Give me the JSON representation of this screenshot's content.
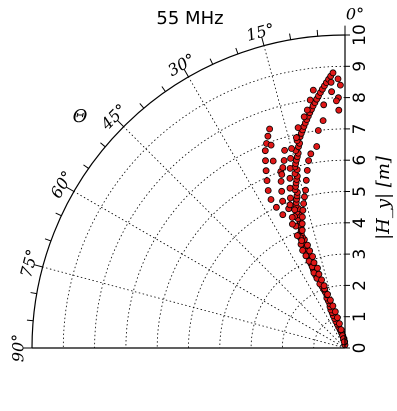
{
  "chart_data": {
    "type": "scatter",
    "projection": "polar",
    "title": "55 MHz",
    "radial_axis": {
      "label": "|H_y| [m]",
      "range": [
        0,
        10
      ],
      "ticks": [
        "0",
        "1",
        "2",
        "3",
        "4",
        "5",
        "6",
        "7",
        "8",
        "9",
        "10"
      ]
    },
    "angular_axis": {
      "label": "Θ",
      "range_deg": [
        0,
        90
      ],
      "ticks": [
        "0°",
        "15°",
        "30°",
        "45°",
        "60°",
        "75°",
        "90°"
      ],
      "tick_values_deg": [
        0,
        15,
        30,
        45,
        60,
        75,
        90
      ]
    },
    "grid": true,
    "legend": "none",
    "marker": {
      "face_color": "#e01818",
      "edge_color": "#000000"
    },
    "series": [
      {
        "points": [
          [
            0.1,
            0
          ],
          [
            0.2,
            3
          ],
          [
            0.3,
            6
          ],
          [
            0.4,
            10
          ],
          [
            0.5,
            13
          ],
          [
            0.6,
            15
          ],
          [
            0.7,
            17
          ],
          [
            0.8,
            18
          ],
          [
            0.9,
            19
          ],
          [
            1.0,
            19.5
          ],
          [
            1.1,
            20
          ],
          [
            1.2,
            20
          ],
          [
            1.3,
            20.5
          ],
          [
            1.4,
            20
          ],
          [
            1.5,
            19
          ],
          [
            1.6,
            19.5
          ],
          [
            1.7,
            20
          ],
          [
            1.8,
            19
          ],
          [
            1.9,
            19.5
          ],
          [
            2.0,
            20
          ],
          [
            2.1,
            20.5
          ],
          [
            2.2,
            21
          ],
          [
            2.3,
            20
          ],
          [
            2.4,
            21.5
          ],
          [
            2.5,
            22
          ],
          [
            2.6,
            21
          ],
          [
            2.7,
            22
          ],
          [
            2.8,
            21
          ],
          [
            2.9,
            22
          ],
          [
            3.0,
            21.5
          ],
          [
            3.1,
            21
          ],
          [
            3.2,
            22
          ],
          [
            3.3,
            21.5
          ],
          [
            3.4,
            21
          ],
          [
            3.5,
            21
          ],
          [
            3.6,
            21.5
          ],
          [
            3.7,
            20.5
          ],
          [
            3.8,
            21
          ],
          [
            3.9,
            21
          ],
          [
            4.0,
            20.5
          ],
          [
            4.1,
            20
          ],
          [
            4.2,
            20.5
          ],
          [
            4.3,
            19.5
          ],
          [
            4.4,
            20
          ],
          [
            4.5,
            19
          ],
          [
            4.6,
            19.5
          ],
          [
            4.7,
            18.5
          ],
          [
            4.8,
            19
          ],
          [
            4.9,
            18.5
          ],
          [
            5.0,
            18
          ],
          [
            5.1,
            17.5
          ],
          [
            5.2,
            17
          ],
          [
            5.3,
            17.5
          ],
          [
            5.4,
            17
          ],
          [
            5.5,
            16.5
          ],
          [
            5.6,
            16
          ],
          [
            5.7,
            15.5
          ],
          [
            5.8,
            16
          ],
          [
            5.9,
            15
          ],
          [
            6.0,
            15.5
          ],
          [
            6.1,
            15
          ],
          [
            6.2,
            14.5
          ],
          [
            6.3,
            14
          ],
          [
            6.4,
            13.5
          ],
          [
            6.5,
            14
          ],
          [
            6.6,
            13
          ],
          [
            6.7,
            12.5
          ],
          [
            6.8,
            13
          ],
          [
            6.9,
            12
          ],
          [
            7.0,
            11.5
          ],
          [
            7.1,
            11
          ],
          [
            7.2,
            10.5
          ],
          [
            7.3,
            10
          ],
          [
            7.4,
            9.5
          ],
          [
            7.5,
            9
          ],
          [
            7.6,
            8.5
          ],
          [
            7.7,
            8
          ],
          [
            7.8,
            7.5
          ],
          [
            7.9,
            7
          ],
          [
            8.0,
            6.5
          ],
          [
            8.1,
            6
          ],
          [
            8.2,
            5.5
          ],
          [
            8.3,
            5
          ],
          [
            8.4,
            4.5
          ],
          [
            8.5,
            4
          ],
          [
            8.6,
            3.5
          ],
          [
            8.7,
            3
          ],
          [
            8.8,
            2.5
          ],
          [
            8.6,
            1.5
          ],
          [
            8.4,
            1
          ],
          [
            8.0,
            1.5
          ],
          [
            7.9,
            2
          ],
          [
            7.6,
            1.5
          ],
          [
            8.2,
            3
          ],
          [
            8.5,
            3
          ],
          [
            7.8,
            5
          ],
          [
            7.3,
            5.5
          ],
          [
            7.0,
            7
          ],
          [
            6.5,
            8
          ],
          [
            6.3,
            10
          ],
          [
            6.1,
            11
          ],
          [
            5.8,
            12
          ],
          [
            5.5,
            13
          ],
          [
            5.2,
            14
          ],
          [
            5.0,
            15
          ],
          [
            4.8,
            16
          ],
          [
            4.6,
            17
          ],
          [
            4.4,
            18
          ],
          [
            4.2,
            19
          ],
          [
            4.0,
            20
          ],
          [
            3.8,
            22
          ],
          [
            3.6,
            23
          ],
          [
            3.4,
            23.5
          ],
          [
            3.2,
            23
          ],
          [
            3.0,
            22.5
          ],
          [
            2.8,
            22
          ],
          [
            2.6,
            22.5
          ],
          [
            2.4,
            22
          ],
          [
            2.2,
            21.5
          ],
          [
            2.0,
            19
          ],
          [
            1.8,
            18
          ],
          [
            1.6,
            17
          ],
          [
            1.4,
            16
          ],
          [
            1.2,
            15
          ],
          [
            1.0,
            14
          ],
          [
            0.8,
            13
          ],
          [
            0.6,
            12
          ],
          [
            0.4,
            11
          ],
          [
            0.3,
            9
          ],
          [
            0.2,
            7
          ],
          [
            7.2,
            20
          ],
          [
            7.0,
            21
          ],
          [
            6.8,
            22
          ],
          [
            6.5,
            23
          ],
          [
            6.2,
            24
          ],
          [
            5.9,
            25
          ],
          [
            5.6,
            26
          ],
          [
            5.3,
            26.5
          ],
          [
            5.0,
            26
          ],
          [
            4.7,
            25
          ],
          [
            7.4,
            19
          ],
          [
            6.9,
            20
          ],
          [
            6.4,
            21
          ],
          [
            6.0,
            20
          ],
          [
            5.7,
            21
          ],
          [
            5.4,
            22
          ],
          [
            5.1,
            23
          ],
          [
            4.8,
            22
          ],
          [
            4.5,
            21
          ],
          [
            4.2,
            22
          ],
          [
            3.9,
            23
          ],
          [
            3.7,
            22
          ],
          [
            3.5,
            20
          ],
          [
            3.3,
            20
          ],
          [
            3.1,
            19.5
          ],
          [
            2.9,
            20
          ],
          [
            2.7,
            19
          ],
          [
            2.5,
            19.5
          ],
          [
            2.3,
            19
          ],
          [
            2.1,
            18.5
          ],
          [
            6.6,
            17
          ],
          [
            6.3,
            16
          ],
          [
            6.0,
            17
          ],
          [
            5.7,
            18
          ],
          [
            5.4,
            19
          ],
          [
            5.1,
            20
          ],
          [
            4.9,
            21
          ],
          [
            4.7,
            20
          ],
          [
            4.5,
            22
          ],
          [
            4.3,
            23
          ],
          [
            8.3,
            7
          ],
          [
            8.0,
            8
          ],
          [
            7.7,
            9
          ],
          [
            7.5,
            10
          ],
          [
            7.2,
            12
          ],
          [
            6.9,
            13
          ],
          [
            6.6,
            15
          ],
          [
            6.3,
            18
          ],
          [
            6.1,
            19
          ],
          [
            5.9,
            20
          ]
        ]
      }
    ]
  }
}
